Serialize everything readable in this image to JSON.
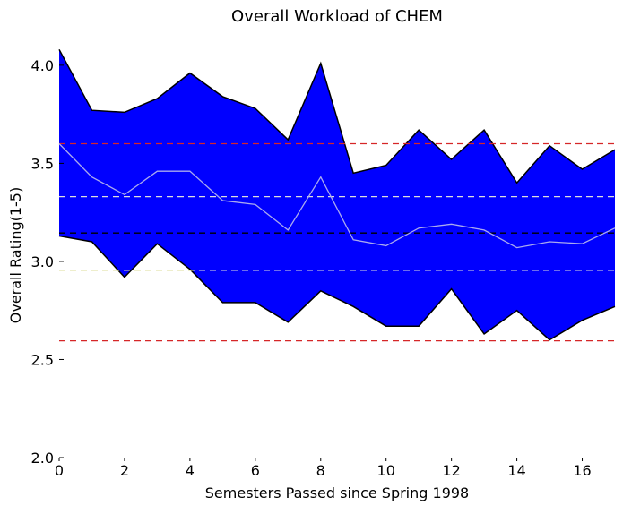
{
  "chart_data": {
    "type": "area",
    "title": "Overall Workload of CHEM",
    "xlabel": "Semesters Passed since Spring 1998",
    "ylabel": "Overall Rating(1-5)",
    "xlim": [
      0,
      17
    ],
    "ylim": [
      2.0,
      4.15
    ],
    "x_ticks": [
      0,
      2,
      4,
      6,
      8,
      10,
      12,
      14,
      16
    ],
    "y_ticks": [
      2.0,
      2.5,
      3.0,
      3.5,
      4.0
    ],
    "grid": false,
    "legend": "none",
    "x": [
      0,
      1,
      2,
      3,
      4,
      5,
      6,
      7,
      8,
      9,
      10,
      11,
      12,
      13,
      14,
      15,
      16,
      17
    ],
    "band_upper": [
      4.08,
      3.77,
      3.76,
      3.83,
      3.96,
      3.84,
      3.78,
      3.62,
      4.01,
      3.45,
      3.49,
      3.67,
      3.52,
      3.67,
      3.4,
      3.59,
      3.47,
      3.57
    ],
    "band_lower": [
      3.13,
      3.1,
      2.92,
      3.09,
      2.96,
      2.79,
      2.79,
      2.69,
      2.85,
      2.77,
      2.67,
      2.67,
      2.86,
      2.63,
      2.75,
      2.6,
      2.7,
      2.77
    ],
    "mean_line": [
      3.6,
      3.43,
      3.34,
      3.46,
      3.46,
      3.31,
      3.29,
      3.16,
      3.43,
      3.11,
      3.08,
      3.17,
      3.19,
      3.16,
      3.07,
      3.1,
      3.09,
      3.17
    ],
    "reference_lines": [
      {
        "y": 3.6,
        "color": "#d62728",
        "style": "dashed"
      },
      {
        "y": 2.595,
        "color": "#d62728",
        "style": "dashed"
      },
      {
        "y": 3.33,
        "color": "#dddddd",
        "style": "dashed"
      },
      {
        "y": 2.955,
        "color": "#dddddd",
        "style": "dashed"
      },
      {
        "y": 3.145,
        "color": "#000000",
        "style": "dashed"
      },
      {
        "y": 2.955,
        "color": "#dddd99",
        "style": "dashed"
      }
    ],
    "colors": {
      "band_fill": "#0000ff",
      "band_edge": "#000000",
      "mean_line": "#aaaaee"
    }
  }
}
